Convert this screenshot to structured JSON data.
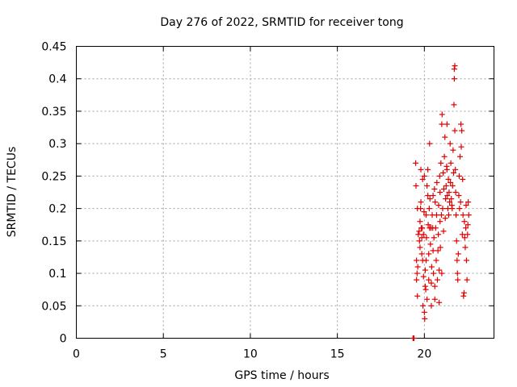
{
  "chart_data": {
    "type": "scatter",
    "title": "Day 276 of 2022, SRMTID for receiver tong",
    "xlabel": "GPS time / hours",
    "ylabel": "SRMTID / TECUs",
    "xlim": [
      0,
      24
    ],
    "ylim": [
      0,
      0.45
    ],
    "grid": true,
    "xticks": [
      0,
      5,
      10,
      15,
      20
    ],
    "yticks": [
      0,
      0.05,
      0.1,
      0.15,
      0.2,
      0.25,
      0.3,
      0.35,
      0.4,
      0.45
    ],
    "series": [
      {
        "name": "SRMTID",
        "color": "#e00000",
        "marker": "+",
        "points": [
          [
            19.35,
            0.0
          ],
          [
            19.4,
            0.0
          ],
          [
            19.5,
            0.27
          ],
          [
            19.52,
            0.235
          ],
          [
            19.55,
            0.12
          ],
          [
            19.55,
            0.09
          ],
          [
            19.58,
            0.1
          ],
          [
            19.6,
            0.065
          ],
          [
            19.6,
            0.2
          ],
          [
            19.62,
            0.11
          ],
          [
            19.65,
            0.16
          ],
          [
            19.7,
            0.165
          ],
          [
            19.72,
            0.15
          ],
          [
            19.75,
            0.18
          ],
          [
            19.75,
            0.14
          ],
          [
            19.78,
            0.2
          ],
          [
            19.8,
            0.26
          ],
          [
            19.8,
            0.21
          ],
          [
            19.82,
            0.17
          ],
          [
            19.85,
            0.155
          ],
          [
            19.85,
            0.13
          ],
          [
            19.88,
            0.17
          ],
          [
            19.9,
            0.245
          ],
          [
            19.9,
            0.12
          ],
          [
            19.92,
            0.05
          ],
          [
            19.95,
            0.095
          ],
          [
            19.95,
            0.16
          ],
          [
            19.98,
            0.195
          ],
          [
            20.0,
            0.25
          ],
          [
            20.0,
            0.04
          ],
          [
            20.02,
            0.03
          ],
          [
            20.05,
            0.08
          ],
          [
            20.05,
            0.105
          ],
          [
            20.08,
            0.075
          ],
          [
            20.1,
            0.12
          ],
          [
            20.1,
            0.19
          ],
          [
            20.12,
            0.155
          ],
          [
            20.15,
            0.235
          ],
          [
            20.15,
            0.06
          ],
          [
            20.2,
            0.26
          ],
          [
            20.2,
            0.22
          ],
          [
            20.22,
            0.175
          ],
          [
            20.25,
            0.13
          ],
          [
            20.25,
            0.09
          ],
          [
            20.28,
            0.2
          ],
          [
            20.3,
            0.3
          ],
          [
            20.3,
            0.17
          ],
          [
            20.32,
            0.215
          ],
          [
            20.35,
            0.145
          ],
          [
            20.38,
            0.17
          ],
          [
            20.4,
            0.05
          ],
          [
            20.4,
            0.085
          ],
          [
            20.42,
            0.11
          ],
          [
            20.45,
            0.19
          ],
          [
            20.48,
            0.17
          ],
          [
            20.5,
            0.22
          ],
          [
            20.5,
            0.135
          ],
          [
            20.52,
            0.1
          ],
          [
            20.55,
            0.155
          ],
          [
            20.58,
            0.23
          ],
          [
            20.6,
            0.06
          ],
          [
            20.6,
            0.08
          ],
          [
            20.62,
            0.21
          ],
          [
            20.65,
            0.17
          ],
          [
            20.68,
            0.12
          ],
          [
            20.7,
            0.19
          ],
          [
            20.72,
            0.24
          ],
          [
            20.75,
            0.09
          ],
          [
            20.78,
            0.135
          ],
          [
            20.8,
            0.16
          ],
          [
            20.82,
            0.205
          ],
          [
            20.85,
            0.055
          ],
          [
            20.85,
            0.105
          ],
          [
            20.88,
            0.25
          ],
          [
            20.9,
            0.225
          ],
          [
            20.9,
            0.18
          ],
          [
            20.92,
            0.14
          ],
          [
            20.95,
            0.27
          ],
          [
            20.98,
            0.19
          ],
          [
            21.0,
            0.33
          ],
          [
            21.0,
            0.1
          ],
          [
            21.02,
            0.345
          ],
          [
            21.05,
            0.2
          ],
          [
            21.08,
            0.255
          ],
          [
            21.1,
            0.165
          ],
          [
            21.12,
            0.23
          ],
          [
            21.15,
            0.28
          ],
          [
            21.18,
            0.31
          ],
          [
            21.2,
            0.185
          ],
          [
            21.22,
            0.215
          ],
          [
            21.25,
            0.235
          ],
          [
            21.28,
            0.265
          ],
          [
            21.3,
            0.33
          ],
          [
            21.3,
            0.26
          ],
          [
            21.32,
            0.22
          ],
          [
            21.35,
            0.2
          ],
          [
            21.38,
            0.245
          ],
          [
            21.4,
            0.19
          ],
          [
            21.42,
            0.225
          ],
          [
            21.45,
            0.21
          ],
          [
            21.48,
            0.3
          ],
          [
            21.5,
            0.24
          ],
          [
            21.52,
            0.27
          ],
          [
            21.55,
            0.215
          ],
          [
            21.58,
            0.205
          ],
          [
            21.6,
            0.2
          ],
          [
            21.62,
            0.235
          ],
          [
            21.65,
            0.29
          ],
          [
            21.68,
            0.255
          ],
          [
            21.7,
            0.36
          ],
          [
            21.72,
            0.4
          ],
          [
            21.72,
            0.415
          ],
          [
            21.75,
            0.42
          ],
          [
            21.75,
            0.32
          ],
          [
            21.78,
            0.26
          ],
          [
            21.8,
            0.225
          ],
          [
            21.82,
            0.19
          ],
          [
            21.85,
            0.15
          ],
          [
            21.88,
            0.12
          ],
          [
            21.9,
            0.1
          ],
          [
            21.92,
            0.09
          ],
          [
            21.95,
            0.13
          ],
          [
            21.98,
            0.22
          ],
          [
            22.0,
            0.25
          ],
          [
            22.02,
            0.2
          ],
          [
            22.05,
            0.28
          ],
          [
            22.08,
            0.21
          ],
          [
            22.1,
            0.33
          ],
          [
            22.12,
            0.295
          ],
          [
            22.15,
            0.32
          ],
          [
            22.18,
            0.16
          ],
          [
            22.2,
            0.245
          ],
          [
            22.22,
            0.19
          ],
          [
            22.25,
            0.065
          ],
          [
            22.28,
            0.07
          ],
          [
            22.3,
            0.18
          ],
          [
            22.32,
            0.155
          ],
          [
            22.35,
            0.14
          ],
          [
            22.38,
            0.17
          ],
          [
            22.4,
            0.205
          ],
          [
            22.42,
            0.12
          ],
          [
            22.45,
            0.09
          ],
          [
            22.48,
            0.16
          ],
          [
            22.5,
            0.175
          ],
          [
            22.52,
            0.21
          ],
          [
            22.55,
            0.19
          ]
        ]
      }
    ]
  }
}
